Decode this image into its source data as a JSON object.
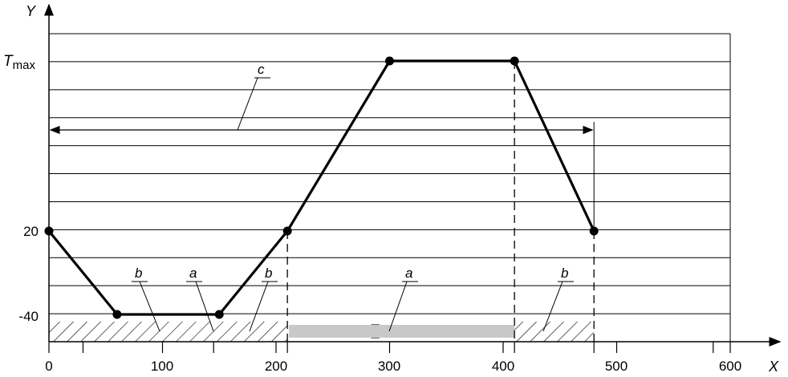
{
  "chart_data": {
    "type": "line",
    "title": "",
    "xlabel": "X",
    "ylabel": "Y",
    "xlim": [
      0,
      600
    ],
    "x_ticks": [
      0,
      100,
      200,
      300,
      400,
      500,
      600
    ],
    "x_minor_ticks": [
      30,
      145,
      210,
      410,
      480,
      585
    ],
    "y_tick_labels": [
      "T_max",
      "20",
      "-40"
    ],
    "grid": "horizontal lines",
    "series": [
      {
        "x": [
          0,
          60,
          150,
          210,
          300,
          410,
          480
        ],
        "y": [
          "20",
          "-40",
          "-40",
          "20",
          "T_max",
          "T_max",
          "20"
        ]
      }
    ],
    "vertical_markers": [
      210,
      410,
      480
    ],
    "regions": [
      {
        "label": "b",
        "x": [
          0,
          210
        ],
        "fill": "hatched"
      },
      {
        "label": "a",
        "x": [
          145,
          150
        ],
        "fill": "hatched-small-box"
      },
      {
        "label": "a",
        "x": [
          210,
          410
        ],
        "fill": "grey"
      },
      {
        "label": "b",
        "x": [
          410,
          480
        ],
        "fill": "hatched"
      }
    ],
    "dimension": {
      "label": "c",
      "x": [
        0,
        480
      ]
    },
    "annotations": [
      "b",
      "a",
      "b",
      "a",
      "b",
      "c"
    ],
    "colors": {
      "line": "#000000",
      "grid": "#000000",
      "grey_band": "#c8c8c8"
    }
  }
}
